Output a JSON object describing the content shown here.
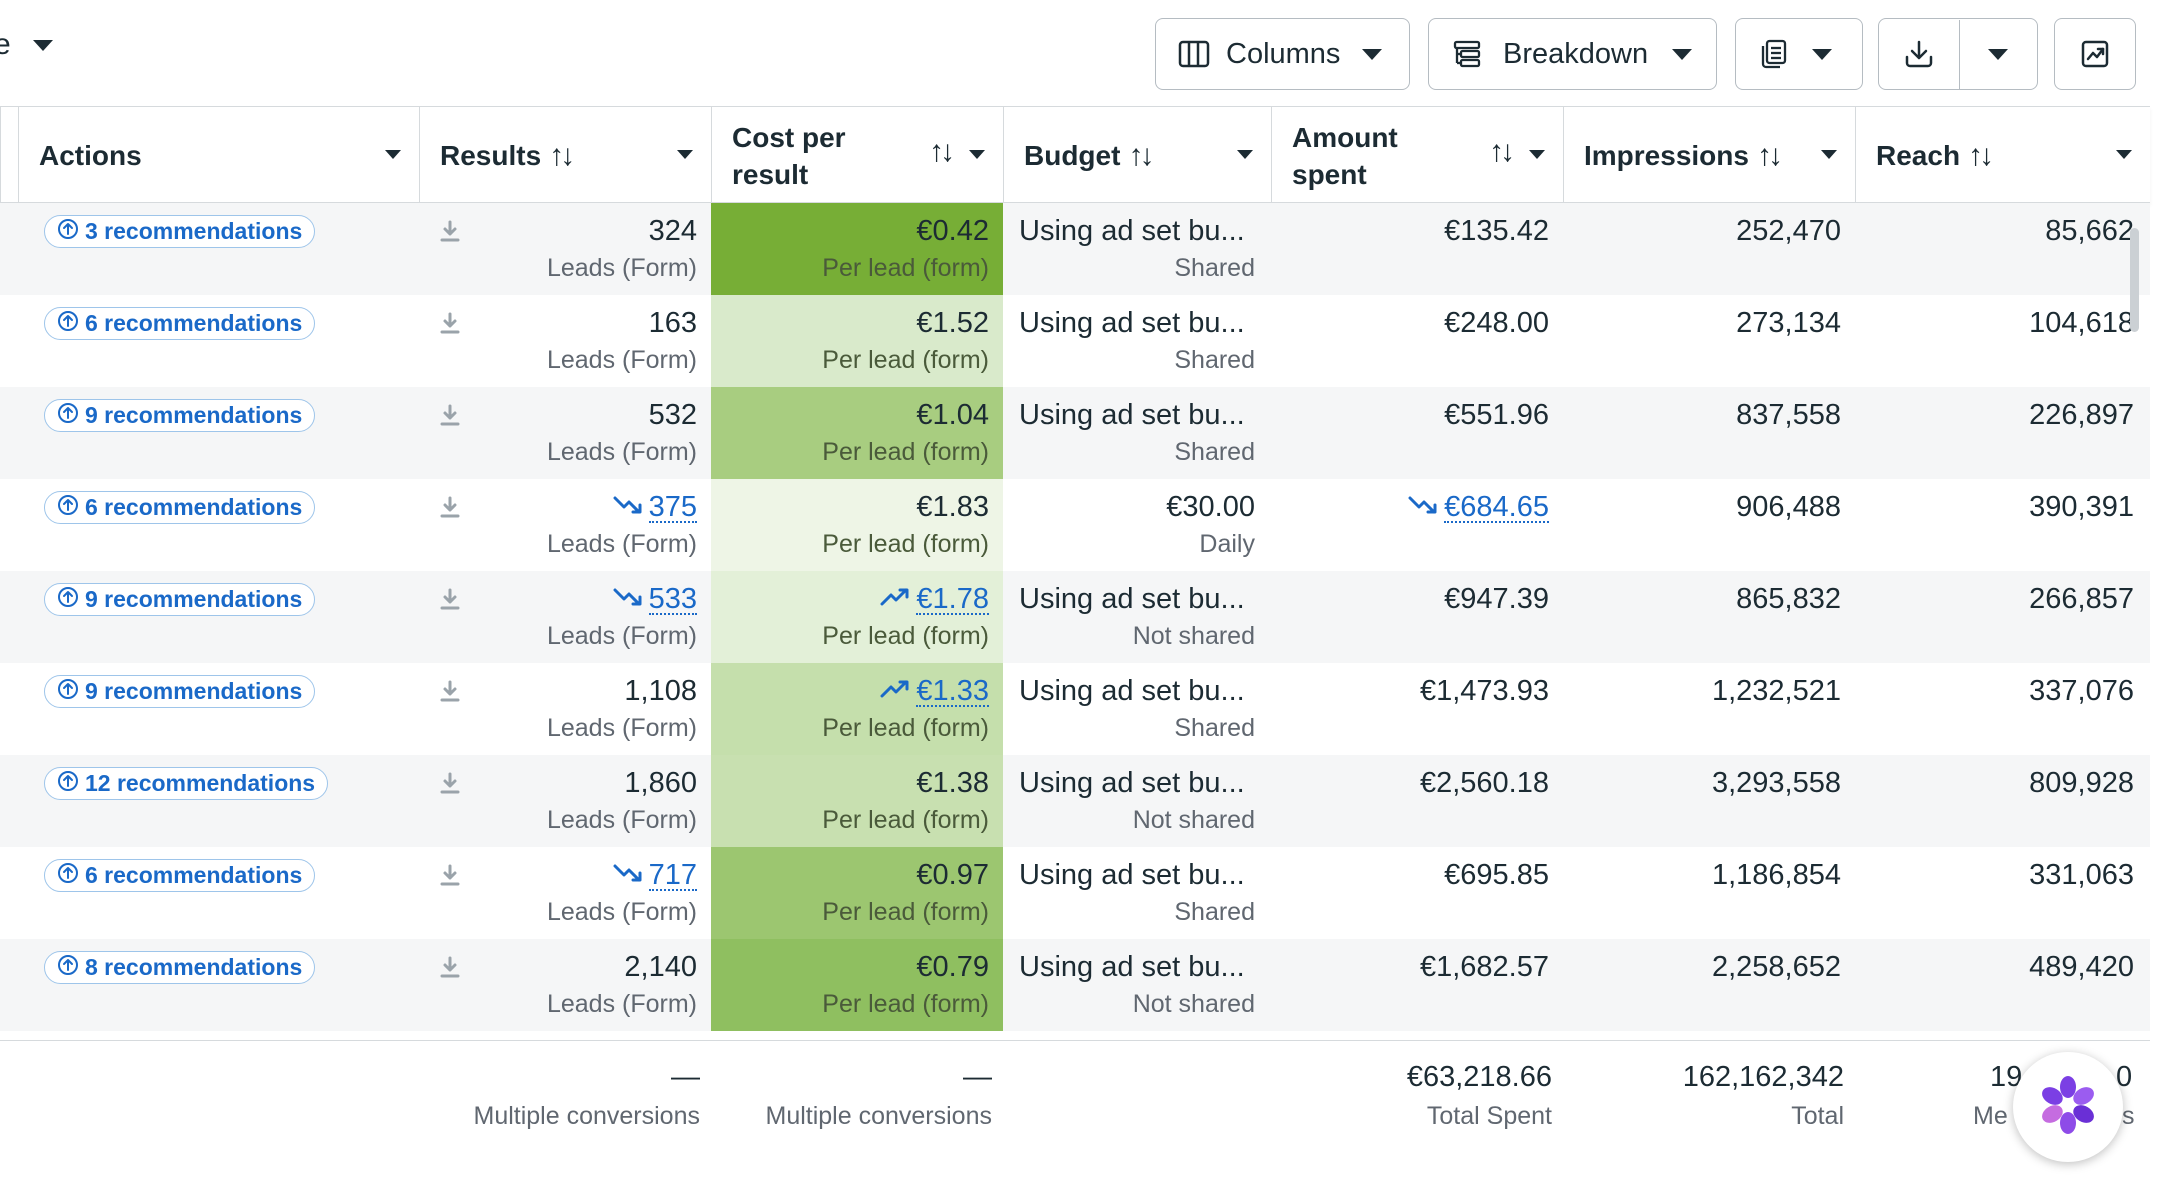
{
  "toolbar": {
    "left_fragment": "e",
    "columns_label": "Columns",
    "breakdown_label": "Breakdown"
  },
  "table": {
    "headers": {
      "actions": "Actions",
      "results": "Results",
      "cost_line1": "Cost per",
      "cost_line2": "result",
      "budget": "Budget",
      "amount_line1": "Amount",
      "amount_line2": "spent",
      "impressions": "Impressions",
      "reach": "Reach",
      "sort_glyph": "↑↓"
    },
    "rows": [
      {
        "recs": "3 recommendations",
        "results": "324",
        "results_sub": "Leads (Form)",
        "results_trend": "",
        "cost": "€0.42",
        "cost_sub": "Per lead (form)",
        "cost_trend": "",
        "budget": "Using ad set bu...",
        "budget_sub": "Shared",
        "amount": "€135.42",
        "amount_trend": "",
        "impressions": "252,470",
        "reach": "85,662"
      },
      {
        "recs": "6 recommendations",
        "results": "163",
        "results_sub": "Leads (Form)",
        "results_trend": "",
        "cost": "€1.52",
        "cost_sub": "Per lead (form)",
        "cost_trend": "",
        "budget": "Using ad set bu...",
        "budget_sub": "Shared",
        "amount": "€248.00",
        "amount_trend": "",
        "impressions": "273,134",
        "reach": "104,618"
      },
      {
        "recs": "9 recommendations",
        "results": "532",
        "results_sub": "Leads (Form)",
        "results_trend": "",
        "cost": "€1.04",
        "cost_sub": "Per lead (form)",
        "cost_trend": "",
        "budget": "Using ad set bu...",
        "budget_sub": "Shared",
        "amount": "€551.96",
        "amount_trend": "",
        "impressions": "837,558",
        "reach": "226,897"
      },
      {
        "recs": "6 recommendations",
        "results": "375",
        "results_sub": "Leads (Form)",
        "results_trend": "down",
        "cost": "€1.83",
        "cost_sub": "Per lead (form)",
        "cost_trend": "",
        "budget": "€30.00",
        "budget_sub": "Daily",
        "amount": "€684.65",
        "amount_trend": "down",
        "impressions": "906,488",
        "reach": "390,391"
      },
      {
        "recs": "9 recommendations",
        "results": "533",
        "results_sub": "Leads (Form)",
        "results_trend": "down",
        "cost": "€1.78",
        "cost_sub": "Per lead (form)",
        "cost_trend": "up",
        "budget": "Using ad set bu...",
        "budget_sub": "Not shared",
        "amount": "€947.39",
        "amount_trend": "",
        "impressions": "865,832",
        "reach": "266,857"
      },
      {
        "recs": "9 recommendations",
        "results": "1,108",
        "results_sub": "Leads (Form)",
        "results_trend": "",
        "cost": "€1.33",
        "cost_sub": "Per lead (form)",
        "cost_trend": "up",
        "budget": "Using ad set bu...",
        "budget_sub": "Shared",
        "amount": "€1,473.93",
        "amount_trend": "",
        "impressions": "1,232,521",
        "reach": "337,076"
      },
      {
        "recs": "12 recommendations",
        "results": "1,860",
        "results_sub": "Leads (Form)",
        "results_trend": "",
        "cost": "€1.38",
        "cost_sub": "Per lead (form)",
        "cost_trend": "",
        "budget": "Using ad set bu...",
        "budget_sub": "Not shared",
        "amount": "€2,560.18",
        "amount_trend": "",
        "impressions": "3,293,558",
        "reach": "809,928"
      },
      {
        "recs": "6 recommendations",
        "results": "717",
        "results_sub": "Leads (Form)",
        "results_trend": "down",
        "cost": "€0.97",
        "cost_sub": "Per lead (form)",
        "cost_trend": "",
        "budget": "Using ad set bu...",
        "budget_sub": "Shared",
        "amount": "€695.85",
        "amount_trend": "",
        "impressions": "1,186,854",
        "reach": "331,063"
      },
      {
        "recs": "8 recommendations",
        "results": "2,140",
        "results_sub": "Leads (Form)",
        "results_trend": "",
        "cost": "€0.79",
        "cost_sub": "Per lead (form)",
        "cost_trend": "",
        "budget": "Using ad set bu...",
        "budget_sub": "Not shared",
        "amount": "€1,682.57",
        "amount_trend": "",
        "impressions": "2,258,652",
        "reach": "489,420"
      }
    ],
    "cost_heat_colors": [
      "#77ae36",
      "#d9eacb",
      "#a8cd80",
      "#eef5e6",
      "#e3f0d8",
      "#c5dfac",
      "#c8e0b0",
      "#9cc670",
      "#8fbf60"
    ],
    "footer": {
      "results_value": "—",
      "results_sub": "Multiple conversions",
      "cost_value": "—",
      "cost_sub": "Multiple conversions",
      "amount_value": "€63,218.66",
      "amount_sub": "Total Spent",
      "impressions_value": "162,162,342",
      "impressions_sub": "Total",
      "reach_value": "19",
      "reach_value_tail": "0",
      "reach_sub": "Me",
      "reach_sub_tail": "s"
    }
  },
  "colors": {
    "accent_link": "#1a69c8",
    "border": "#d6dadd",
    "text": "#1c2b33",
    "muted": "#606770"
  }
}
